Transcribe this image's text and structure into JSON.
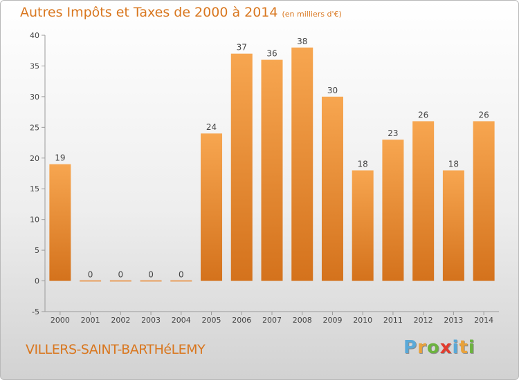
{
  "title": "Autres Impôts et Taxes de 2000 à 2014",
  "unit": "(en milliers d'€)",
  "town": "VILLERS-SAINT-BARTHéLEMY",
  "logo": {
    "letters": [
      "P",
      "r",
      "o",
      "x",
      "i",
      "t",
      "i"
    ],
    "colors": [
      "#5aa9d8",
      "#e9a23b",
      "#6cb33f",
      "#e23c2e",
      "#5aa9d8",
      "#e9a23b",
      "#6cb33f"
    ]
  },
  "chart_data": {
    "type": "bar",
    "title": "Autres Impôts et Taxes de 2000 à 2014",
    "subtitle": "(en milliers d'€)",
    "categories": [
      "2000",
      "2001",
      "2002",
      "2003",
      "2004",
      "2005",
      "2006",
      "2007",
      "2008",
      "2009",
      "2010",
      "2011",
      "2012",
      "2013",
      "2014"
    ],
    "values": [
      19,
      0,
      0,
      0,
      0,
      24,
      37,
      36,
      38,
      30,
      18,
      23,
      26,
      18,
      26
    ],
    "data_labels": [
      "19",
      "0",
      "0",
      "0",
      "0",
      "24",
      "37",
      "36",
      "38",
      "30",
      "18",
      "23",
      "26",
      "18",
      "26"
    ],
    "ylim": [
      -5,
      40
    ],
    "yticks": [
      "-5",
      "0",
      "5",
      "10",
      "15",
      "20",
      "25",
      "30",
      "35",
      "40"
    ],
    "grid": false,
    "colors": {
      "bar_top": "#f7a650",
      "bar_bottom": "#d4721c",
      "text": "#d9771f"
    }
  }
}
